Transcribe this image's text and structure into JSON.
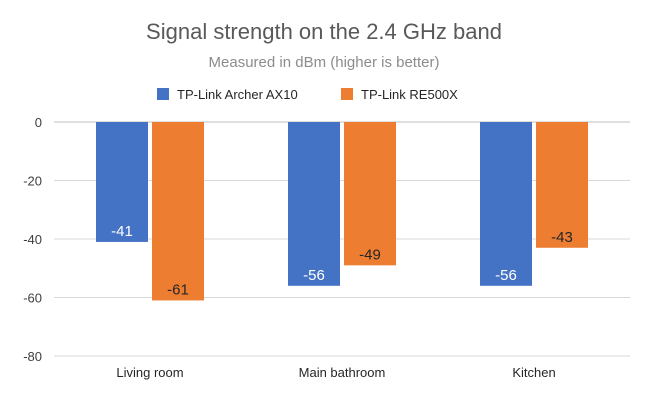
{
  "chart_data": {
    "type": "bar",
    "title": "Signal strength on the 2.4 GHz band",
    "subtitle": "Measured in dBm (higher is better)",
    "categories": [
      "Living room",
      "Main bathroom",
      "Kitchen"
    ],
    "series": [
      {
        "name": "TP-Link Archer AX10",
        "color": "#4472c4",
        "label_color": "#ffffff",
        "values": [
          -41,
          -56,
          -56
        ]
      },
      {
        "name": "TP-Link RE500X",
        "color": "#ed7d31",
        "label_color": "#262626",
        "values": [
          -61,
          -49,
          -43
        ]
      }
    ],
    "ylim": [
      -80,
      0
    ],
    "yticks": [
      0,
      -20,
      -40,
      -60,
      -80
    ],
    "grid": true,
    "legend_position": "top"
  }
}
